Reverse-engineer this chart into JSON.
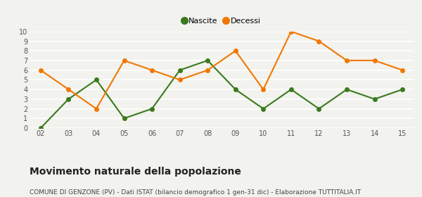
{
  "years": [
    "02",
    "03",
    "04",
    "05",
    "06",
    "07",
    "08",
    "09",
    "10",
    "11",
    "12",
    "13",
    "14",
    "15"
  ],
  "nascite": [
    0,
    3,
    5,
    1,
    2,
    6,
    7,
    4,
    2,
    4,
    2,
    4,
    3,
    4
  ],
  "decessi": [
    6,
    4,
    2,
    7,
    6,
    5,
    6,
    8,
    4,
    10,
    9,
    7,
    7,
    6
  ],
  "nascite_color": "#3a7a1e",
  "decessi_color": "#f07800",
  "background_color": "#f2f2ee",
  "grid_color": "#ffffff",
  "ylim": [
    0,
    10
  ],
  "yticks": [
    0,
    1,
    2,
    3,
    4,
    5,
    6,
    7,
    8,
    9,
    10
  ],
  "title": "Movimento naturale della popolazione",
  "subtitle": "COMUNE DI GENZONE (PV) - Dati ISTAT (bilancio demografico 1 gen-31 dic) - Elaborazione TUTTITALIA.IT",
  "legend_nascite": "Nascite",
  "legend_decessi": "Decessi",
  "title_fontsize": 10,
  "subtitle_fontsize": 6.5,
  "legend_fontsize": 8,
  "tick_fontsize": 7,
  "marker_size": 5,
  "line_width": 1.5
}
